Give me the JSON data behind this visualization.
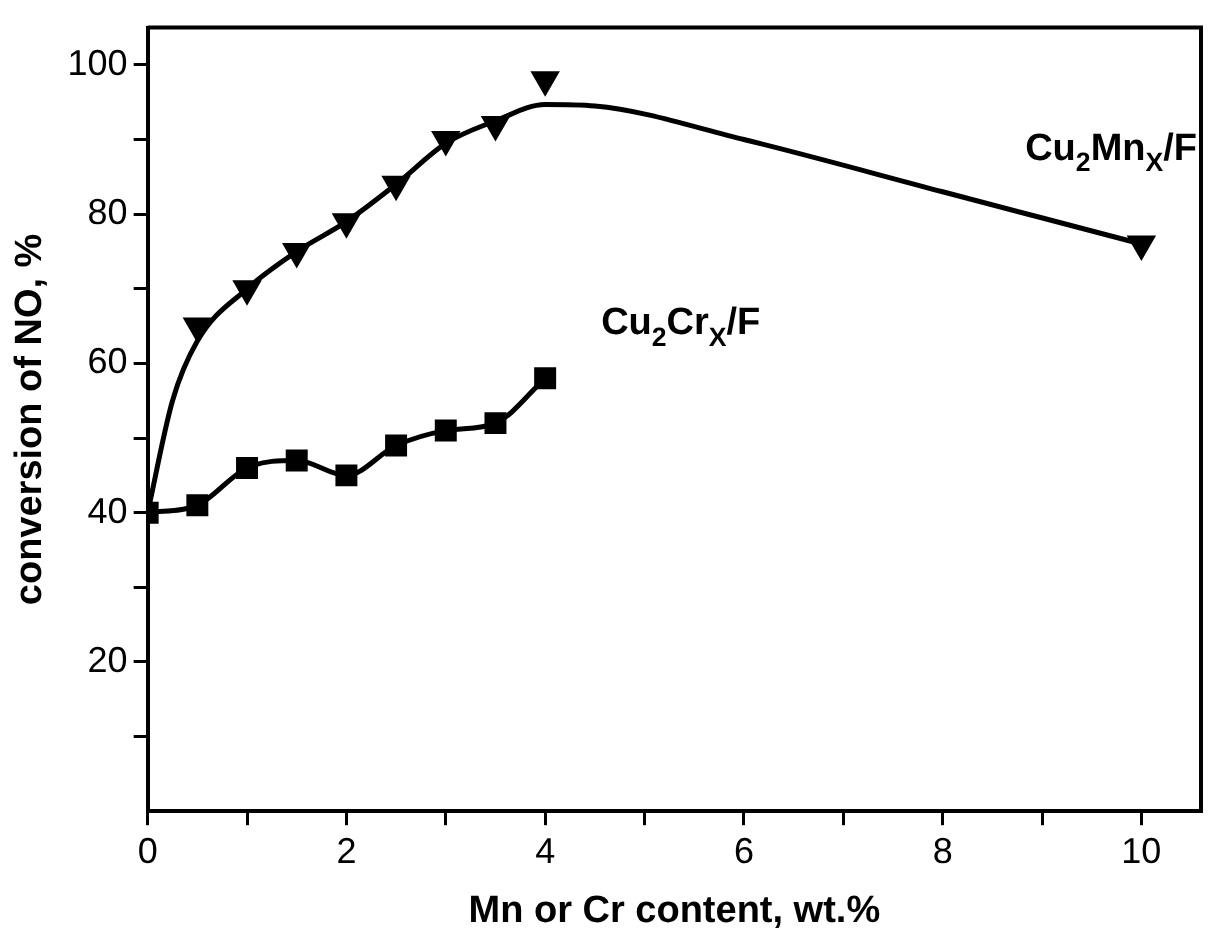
{
  "chart_data": {
    "type": "line",
    "xlabel": "Mn or Cr content, wt.%",
    "ylabel": "conversion of NO, %",
    "xlim": [
      0,
      10.6
    ],
    "ylim": [
      0,
      105
    ],
    "xticks": [
      0,
      {
        "value": 1,
        "label": null
      },
      2,
      {
        "value": 3,
        "label": null
      },
      4,
      {
        "value": 5,
        "label": null
      },
      6,
      {
        "value": 7,
        "label": null
      },
      8,
      {
        "value": 9,
        "label": null
      },
      10
    ],
    "yticks": [
      {
        "value": 10,
        "label": null
      },
      20,
      {
        "value": 30,
        "label": null
      },
      40,
      {
        "value": 50,
        "label": null
      },
      60,
      {
        "value": 70,
        "label": null
      },
      80,
      {
        "value": 90,
        "label": null
      },
      100
    ],
    "grid": false,
    "legend": false,
    "series": [
      {
        "name": "Cu$_{2}$Mn$_{X}$/F",
        "type": "scatter",
        "marker": "triangle",
        "color": "#000000",
        "x": [
          0.5,
          1,
          1.5,
          2,
          2.5,
          3,
          3.5,
          4,
          10
        ],
        "values": [
          65,
          70,
          75,
          79,
          84,
          90,
          92,
          98,
          76
        ]
      },
      {
        "marker": "none",
        "color": "#000000",
        "x": [
          0,
          0.25,
          0.5,
          1,
          1.5,
          2,
          2.5,
          3,
          3.5,
          4,
          4.5,
          6,
          8,
          10
        ],
        "values": [
          40,
          55,
          63,
          70,
          75,
          79,
          84,
          89.5,
          92.5,
          94.7,
          94.5,
          90,
          83,
          76
        ]
      },
      {
        "name": "Cu$_{2}$Cr$_{X}$/F",
        "marker": "square",
        "color": "#000000",
        "x": [
          0,
          0.5,
          1,
          1.5,
          2,
          2.5,
          3,
          3.5,
          4
        ],
        "values": [
          40,
          41,
          46,
          47,
          45,
          49,
          51,
          52,
          58
        ]
      }
    ]
  }
}
